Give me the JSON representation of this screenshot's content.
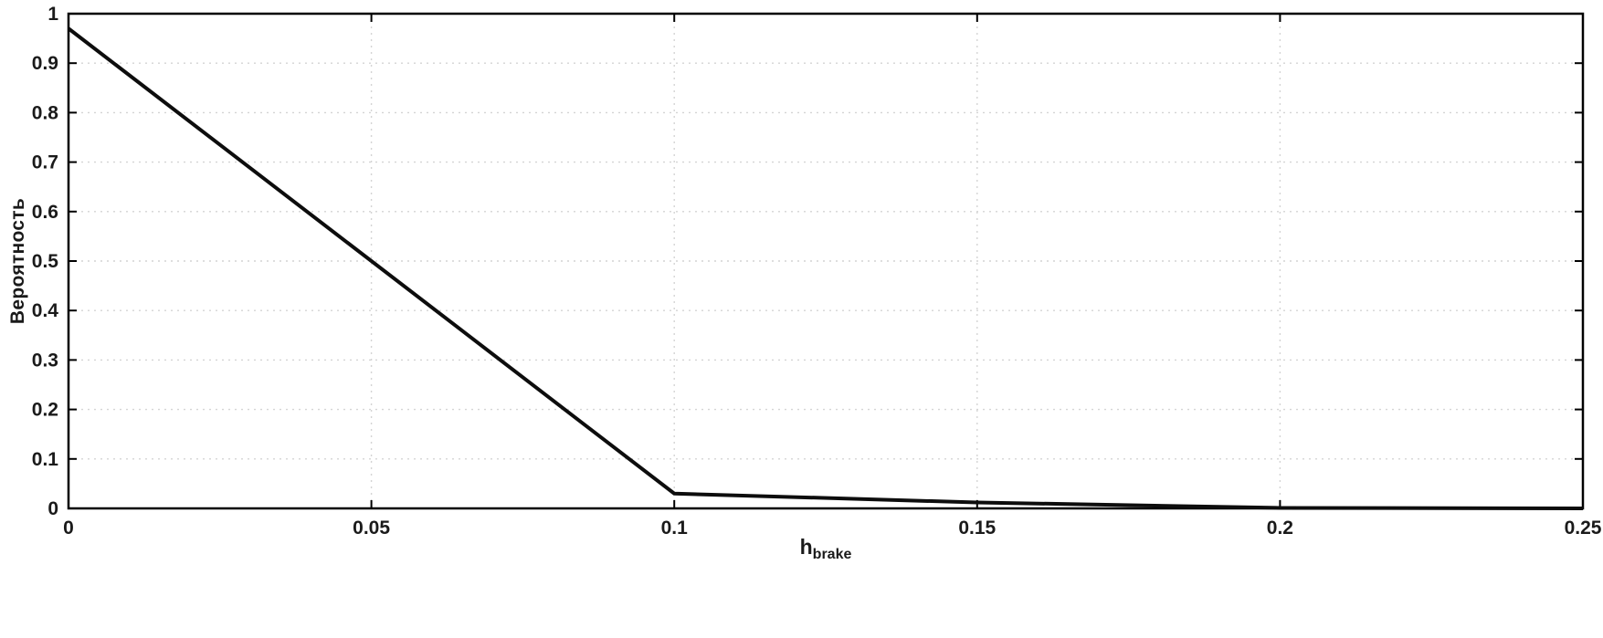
{
  "chart_data": {
    "type": "line",
    "title": "",
    "xlabel_base": "h",
    "xlabel_sub": "brake",
    "ylabel": "Вероятность",
    "xlim": [
      0,
      0.25
    ],
    "ylim": [
      0,
      1
    ],
    "x_ticks": [
      0,
      0.05,
      0.1,
      0.15,
      0.2,
      0.25
    ],
    "x_tick_labels": [
      "0",
      "0.05",
      "0.1",
      "0.15",
      "0.2",
      "0.25"
    ],
    "y_ticks": [
      0,
      0.1,
      0.2,
      0.3,
      0.4,
      0.5,
      0.6,
      0.7,
      0.8,
      0.9,
      1
    ],
    "y_tick_labels": [
      "0",
      "0.1",
      "0.2",
      "0.3",
      "0.4",
      "0.5",
      "0.6",
      "0.7",
      "0.8",
      "0.9",
      "1"
    ],
    "grid": true,
    "legend": null,
    "series": [
      {
        "name": "probability",
        "x": [
          0,
          0.1,
          0.15,
          0.2,
          0.25
        ],
        "y": [
          0.97,
          0.03,
          0.012,
          0.001,
          0.0
        ],
        "color": "#0d0d0d",
        "line_width": 4
      }
    ],
    "colors": {
      "axis": "#000000",
      "grid": "#d4d4d4",
      "text": "#1a1a1a",
      "background": "#ffffff"
    }
  }
}
